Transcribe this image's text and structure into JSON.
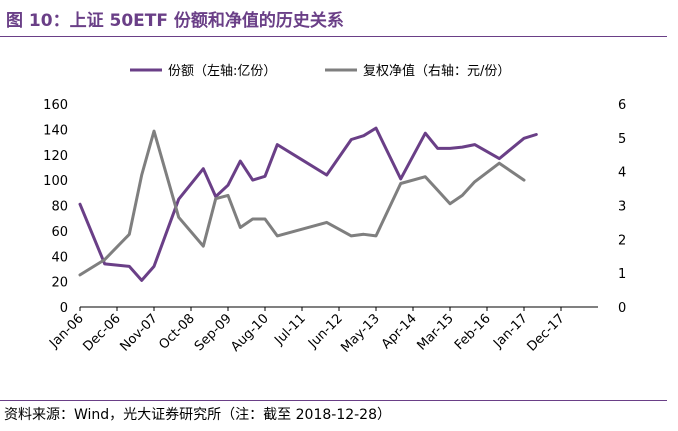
{
  "header": {
    "title": "图 10：上证 50ETF 份额和净值的历史关系"
  },
  "footer": {
    "source": "资料来源：Wind，光大证券研究所（注：截至 2018-12-28）"
  },
  "colors": {
    "accent": "#6a3f87",
    "series1": "#6a3f87",
    "series2": "#7f7f7f"
  },
  "chart_data": {
    "type": "line",
    "x_tick_labels": [
      "Jan-06",
      "Dec-06",
      "Nov-07",
      "Oct-08",
      "Sep-09",
      "Aug-10",
      "Jul-11",
      "Jun-12",
      "May-13",
      "Apr-14",
      "Mar-15",
      "Feb-16",
      "Jan-17",
      "Dec-17"
    ],
    "x": [
      0,
      2,
      4,
      5,
      6,
      8,
      10,
      11,
      12,
      13,
      14,
      15,
      16,
      18,
      20,
      22,
      23,
      24,
      26,
      28,
      29,
      30,
      31,
      32,
      34,
      36,
      37,
      38,
      40
    ],
    "series": [
      {
        "name": "份额（左轴:亿份）",
        "axis": "left",
        "values": [
          81,
          34,
          32,
          21,
          32,
          85,
          109,
          87,
          96,
          115,
          100,
          103,
          128,
          116,
          104,
          132,
          135,
          141,
          101,
          137,
          125,
          125,
          126,
          128,
          117,
          133,
          136,
          null,
          null
        ]
      },
      {
        "name": "复权净值（右轴：元/份）",
        "axis": "right",
        "values": [
          0.95,
          1.4,
          2.15,
          3.9,
          5.2,
          2.65,
          1.8,
          3.2,
          3.3,
          2.35,
          2.6,
          2.6,
          2.1,
          2.3,
          2.5,
          2.1,
          2.15,
          2.1,
          3.65,
          3.85,
          3.45,
          3.05,
          3.3,
          3.7,
          4.25,
          3.75,
          null,
          null,
          null
        ]
      }
    ],
    "ylim_left": [
      0,
      160
    ],
    "yticks_left": [
      0,
      20,
      40,
      60,
      80,
      100,
      120,
      140,
      160
    ],
    "ylim_right": [
      0,
      6
    ],
    "yticks_right": [
      0,
      1,
      2,
      3,
      4,
      5,
      6
    ],
    "grid": false,
    "legend_position": "top-center"
  }
}
